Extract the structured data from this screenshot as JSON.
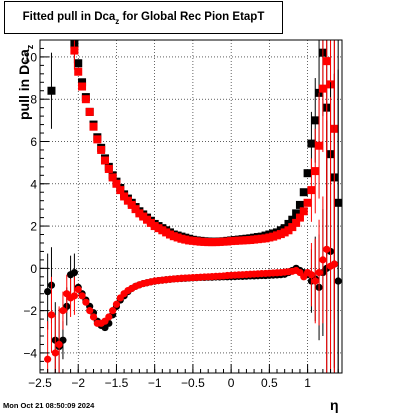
{
  "chart_data": {
    "type": "scatter",
    "title_main": "Fitted pull in Dca",
    "title_sub": "z",
    "title_tail": " for Global Rec Pion EtapT",
    "xlabel": "η",
    "ylabel_main": "pull in Dca",
    "ylabel_sub": "z",
    "xlim": [
      -2.5,
      1.45
    ],
    "ylim": [
      -4.95,
      10.8
    ],
    "x_ticks": [
      -2.5,
      -2,
      -1.5,
      -1,
      -0.5,
      0,
      0.5,
      1
    ],
    "x_tick_labels": [
      "−2.5",
      "−2",
      "−1.5",
      "−1",
      "−0.5",
      "0",
      "0.5",
      "1"
    ],
    "y_ticks": [
      -4,
      -2,
      0,
      2,
      4,
      6,
      8,
      10
    ],
    "y_tick_labels": [
      "−4",
      "−2",
      "0",
      "2",
      "4",
      "6",
      "8",
      "10"
    ],
    "grid": true,
    "series": [
      {
        "color": "#000000",
        "marker": "square",
        "x": [
          -2.35,
          -2.05,
          -2.0,
          -1.95,
          -1.9,
          -1.85,
          -1.8,
          -1.75,
          -1.7,
          -1.65,
          -1.6,
          -1.55,
          -1.5,
          -1.45,
          -1.4,
          -1.35,
          -1.3,
          -1.25,
          -1.2,
          -1.15,
          -1.1,
          -1.05,
          -1.0,
          -0.95,
          -0.9,
          -0.85,
          -0.8,
          -0.75,
          -0.7,
          -0.65,
          -0.6,
          -0.55,
          -0.5,
          -0.45,
          -0.4,
          -0.35,
          -0.3,
          -0.25,
          -0.2,
          -0.15,
          -0.1,
          -0.05,
          0.0,
          0.05,
          0.1,
          0.15,
          0.2,
          0.25,
          0.3,
          0.35,
          0.4,
          0.45,
          0.5,
          0.55,
          0.6,
          0.65,
          0.7,
          0.75,
          0.8,
          0.85,
          0.9,
          0.95,
          1.0,
          1.05,
          1.1,
          1.15,
          1.2,
          1.25,
          1.3,
          1.35,
          1.4
        ],
        "y": [
          8.4,
          10.6,
          9.7,
          8.8,
          8.1,
          7.4,
          6.8,
          6.2,
          5.7,
          5.2,
          4.8,
          4.4,
          4.1,
          3.8,
          3.5,
          3.3,
          3.1,
          2.9,
          2.7,
          2.55,
          2.4,
          2.25,
          2.1,
          2.0,
          1.9,
          1.8,
          1.7,
          1.6,
          1.55,
          1.5,
          1.45,
          1.4,
          1.35,
          1.32,
          1.3,
          1.28,
          1.27,
          1.26,
          1.26,
          1.27,
          1.28,
          1.3,
          1.32,
          1.34,
          1.36,
          1.38,
          1.4,
          1.42,
          1.45,
          1.48,
          1.5,
          1.55,
          1.6,
          1.65,
          1.7,
          1.8,
          1.9,
          2.1,
          2.3,
          2.6,
          3.0,
          3.6,
          4.5,
          5.9,
          7.0,
          8.3,
          10.2,
          7.6,
          5.4,
          4.3,
          3.1
        ]
      },
      {
        "color": "#ff0000",
        "marker": "square",
        "x": [
          -2.05,
          -2.0,
          -1.95,
          -1.9,
          -1.85,
          -1.8,
          -1.75,
          -1.7,
          -1.65,
          -1.6,
          -1.55,
          -1.5,
          -1.45,
          -1.4,
          -1.35,
          -1.3,
          -1.25,
          -1.2,
          -1.15,
          -1.1,
          -1.05,
          -1.0,
          -0.95,
          -0.9,
          -0.85,
          -0.8,
          -0.75,
          -0.7,
          -0.65,
          -0.6,
          -0.55,
          -0.5,
          -0.45,
          -0.4,
          -0.35,
          -0.3,
          -0.25,
          -0.2,
          -0.15,
          -0.1,
          -0.05,
          0.0,
          0.05,
          0.1,
          0.15,
          0.2,
          0.25,
          0.3,
          0.35,
          0.4,
          0.45,
          0.5,
          0.55,
          0.6,
          0.65,
          0.7,
          0.75,
          0.8,
          0.85,
          0.9,
          0.95,
          1.0,
          1.05,
          1.1,
          1.15,
          1.2,
          1.25,
          1.3,
          1.35
        ],
        "y": [
          10.3,
          9.3,
          8.6,
          8.0,
          7.4,
          6.7,
          6.1,
          5.6,
          5.1,
          4.7,
          4.3,
          4.0,
          3.7,
          3.4,
          3.2,
          3.0,
          2.8,
          2.6,
          2.45,
          2.3,
          2.15,
          2.0,
          1.9,
          1.8,
          1.7,
          1.6,
          1.52,
          1.46,
          1.4,
          1.36,
          1.32,
          1.3,
          1.28,
          1.26,
          1.25,
          1.24,
          1.24,
          1.24,
          1.25,
          1.26,
          1.27,
          1.29,
          1.3,
          1.31,
          1.32,
          1.33,
          1.34,
          1.36,
          1.38,
          1.4,
          1.42,
          1.46,
          1.5,
          1.56,
          1.62,
          1.7,
          1.8,
          1.95,
          2.15,
          2.4,
          2.7,
          3.1,
          3.7,
          4.6,
          5.8,
          8.5,
          9.8,
          8.7,
          6.6
        ]
      },
      {
        "color": "#000000",
        "marker": "circle",
        "x": [
          -2.4,
          -2.35,
          -2.3,
          -2.25,
          -2.2,
          -2.15,
          -2.1,
          -2.05,
          -2.0,
          -1.95,
          -1.9,
          -1.85,
          -1.8,
          -1.75,
          -1.7,
          -1.65,
          -1.6,
          -1.55,
          -1.5,
          -1.45,
          -1.4,
          -1.35,
          -1.3,
          -1.25,
          -1.2,
          -1.15,
          -1.1,
          -1.05,
          -1.0,
          -0.95,
          -0.9,
          -0.85,
          -0.8,
          -0.75,
          -0.7,
          -0.65,
          -0.6,
          -0.55,
          -0.5,
          -0.45,
          -0.4,
          -0.35,
          -0.3,
          -0.25,
          -0.2,
          -0.15,
          -0.1,
          -0.05,
          0.0,
          0.05,
          0.1,
          0.15,
          0.2,
          0.25,
          0.3,
          0.35,
          0.4,
          0.45,
          0.5,
          0.55,
          0.6,
          0.65,
          0.7,
          0.75,
          0.8,
          0.85,
          0.9,
          0.95,
          1.0,
          1.05,
          1.1,
          1.15,
          1.2,
          1.25,
          1.3,
          1.35,
          1.4
        ],
        "y": [
          -1.1,
          -0.8,
          -3.4,
          -3.7,
          -3.4,
          -1.8,
          -0.3,
          -0.2,
          -0.9,
          -1.2,
          -1.5,
          -1.8,
          -2.1,
          -2.5,
          -2.7,
          -2.8,
          -2.6,
          -2.2,
          -1.8,
          -1.5,
          -1.3,
          -1.1,
          -0.95,
          -0.85,
          -0.78,
          -0.72,
          -0.68,
          -0.64,
          -0.61,
          -0.58,
          -0.56,
          -0.54,
          -0.52,
          -0.5,
          -0.49,
          -0.48,
          -0.47,
          -0.46,
          -0.45,
          -0.44,
          -0.43,
          -0.43,
          -0.42,
          -0.42,
          -0.41,
          -0.41,
          -0.4,
          -0.4,
          -0.39,
          -0.39,
          -0.38,
          -0.38,
          -0.37,
          -0.36,
          -0.36,
          -0.35,
          -0.34,
          -0.34,
          -0.33,
          -0.32,
          -0.31,
          -0.3,
          -0.28,
          -0.2,
          -0.1,
          0.0,
          -0.1,
          -0.2,
          -0.3,
          -0.6,
          -0.5,
          -0.9,
          -0.2,
          0.0,
          0.8,
          0.2,
          -0.6
        ]
      },
      {
        "color": "#ff0000",
        "marker": "circle",
        "x": [
          -2.4,
          -2.35,
          -2.3,
          -2.25,
          -2.2,
          -2.15,
          -2.1,
          -2.05,
          -2.0,
          -1.95,
          -1.9,
          -1.85,
          -1.8,
          -1.75,
          -1.7,
          -1.65,
          -1.6,
          -1.55,
          -1.5,
          -1.45,
          -1.4,
          -1.35,
          -1.3,
          -1.25,
          -1.2,
          -1.15,
          -1.1,
          -1.05,
          -1.0,
          -0.95,
          -0.9,
          -0.85,
          -0.8,
          -0.75,
          -0.7,
          -0.65,
          -0.6,
          -0.55,
          -0.5,
          -0.45,
          -0.4,
          -0.35,
          -0.3,
          -0.25,
          -0.2,
          -0.15,
          -0.1,
          -0.05,
          0.0,
          0.05,
          0.1,
          0.15,
          0.2,
          0.25,
          0.3,
          0.35,
          0.4,
          0.45,
          0.5,
          0.55,
          0.6,
          0.65,
          0.7,
          0.75,
          0.8,
          0.85,
          0.9,
          0.95,
          1.0,
          1.05,
          1.1,
          1.15,
          1.2,
          1.25,
          1.3,
          1.35
        ],
        "y": [
          -4.3,
          -2.2,
          -4.0,
          -3.6,
          -2.0,
          -1.2,
          -1.4,
          -1.3,
          -1.0,
          -1.3,
          -1.6,
          -2.0,
          -2.3,
          -2.6,
          -2.6,
          -2.5,
          -2.3,
          -2.0,
          -1.7,
          -1.4,
          -1.2,
          -1.05,
          -0.95,
          -0.85,
          -0.78,
          -0.72,
          -0.68,
          -0.64,
          -0.6,
          -0.58,
          -0.56,
          -0.54,
          -0.52,
          -0.5,
          -0.49,
          -0.47,
          -0.46,
          -0.45,
          -0.44,
          -0.43,
          -0.42,
          -0.41,
          -0.4,
          -0.39,
          -0.38,
          -0.37,
          -0.36,
          -0.34,
          -0.33,
          -0.32,
          -0.31,
          -0.3,
          -0.29,
          -0.28,
          -0.27,
          -0.26,
          -0.25,
          -0.24,
          -0.23,
          -0.22,
          -0.21,
          -0.2,
          -0.18,
          -0.16,
          -0.14,
          -0.1,
          -0.2,
          -0.4,
          -0.2,
          -0.3,
          -0.6,
          -0.2,
          0.4,
          0.9,
          0.1,
          0.2
        ]
      }
    ]
  },
  "footer": {
    "timestamp": "Mon Oct 21 08:50:09 2024"
  }
}
